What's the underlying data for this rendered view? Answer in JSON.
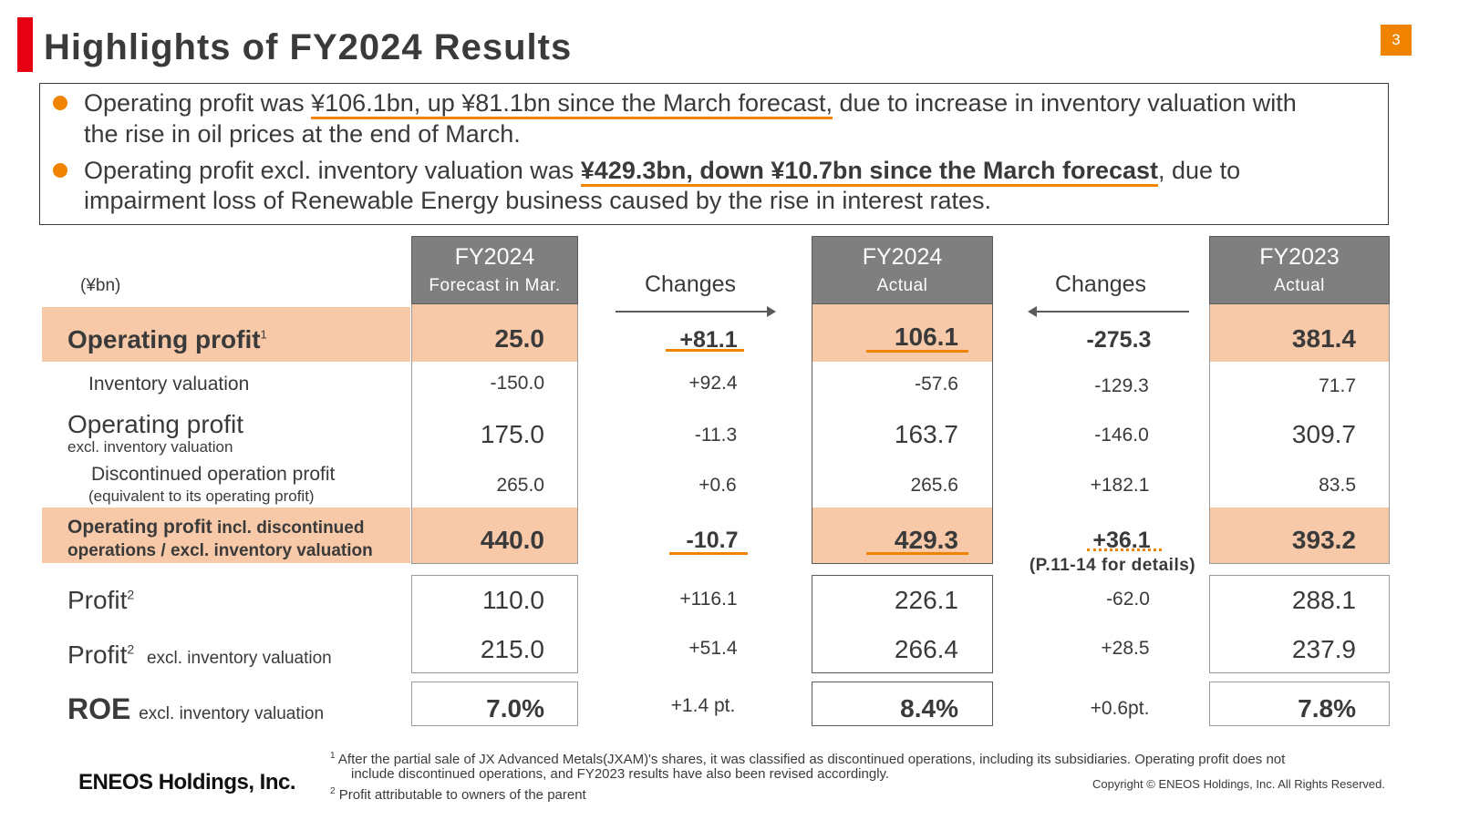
{
  "title": "Highlights of FY2024 Results",
  "page_number": "3",
  "summary": {
    "b1_pre": "Operating profit was ",
    "b1_ul": "¥106.1bn, up ¥81.1bn since the March forecast,",
    "b1_post": " due to increase in inventory valuation with",
    "b1_line2": "the rise in oil prices at the end of March.",
    "b2_pre": "Operating profit excl. inventory valuation was ",
    "b2_ul": "¥429.3bn, down ¥10.7bn since the March forecast",
    "b2_post": ", due to",
    "b2_line2": "impairment loss of Renewable Energy business caused by the rise in interest rates."
  },
  "table": {
    "unit": "(¥bn)",
    "headers": {
      "forecast_line1": "FY2024",
      "forecast_line2": "Forecast in Mar.",
      "changes1": "Changes",
      "actual_line1": "FY2024",
      "actual_line2": "Actual",
      "changes2": "Changes",
      "prev_line1": "FY2023",
      "prev_line2": "Actual"
    },
    "labels": {
      "op_profit": "Operating profit",
      "op_profit_sup": "1",
      "inventory": "Inventory valuation",
      "op_excl_main": "Operating profit",
      "op_excl_sub": "excl. inventory valuation",
      "discont_main": "Discontinued operation profit",
      "discont_sub": "(equivalent to its operating profit)",
      "op_incl_bold": "Operating profit",
      "op_incl_rest": " incl. discontinued",
      "op_incl_line2": "operations / excl. inventory valuation",
      "profit": "Profit",
      "profit_sup": "2",
      "profit_excl": "Profit",
      "profit_excl_sup": "2",
      "profit_excl_sub": "excl. inventory valuation",
      "roe": "ROE",
      "roe_sub": "excl. inventory valuation"
    },
    "rows": {
      "op_profit": {
        "forecast": "25.0",
        "chg1": "+81.1",
        "actual": "106.1",
        "chg2": "-275.3",
        "prev": "381.4"
      },
      "inventory": {
        "forecast": "-150.0",
        "chg1": "+92.4",
        "actual": "-57.6",
        "chg2": "-129.3",
        "prev": "71.7"
      },
      "op_excl": {
        "forecast": "175.0",
        "chg1": "-11.3",
        "actual": "163.7",
        "chg2": "-146.0",
        "prev": "309.7"
      },
      "discont": {
        "forecast": "265.0",
        "chg1": "+0.6",
        "actual": "265.6",
        "chg2": "+182.1",
        "prev": "83.5"
      },
      "op_incl": {
        "forecast": "440.0",
        "chg1": "-10.7",
        "actual": "429.3",
        "chg2": "+36.1",
        "prev": "393.2"
      },
      "profit": {
        "forecast": "110.0",
        "chg1": "+116.1",
        "actual": "226.1",
        "chg2": "-62.0",
        "prev": "288.1"
      },
      "profit_excl": {
        "forecast": "215.0",
        "chg1": "+51.4",
        "actual": "266.4",
        "chg2": "+28.5",
        "prev": "237.9"
      },
      "roe": {
        "forecast": "7.0%",
        "chg1": "+1.4 pt.",
        "actual": "8.4%",
        "chg2": "+0.6pt.",
        "prev": "7.8%"
      }
    },
    "details_note": "(P.11-14 for details)"
  },
  "footer": {
    "logo": "ENEOS Holdings, Inc.",
    "fn1_sup": "1",
    "fn1_line1": "After the partial sale of JX Advanced Metals(JXAM)'s shares, it was classified as discontinued operations, including its subsidiaries. Operating profit does not",
    "fn1_line2": "include discontinued operations, and FY2023 results have also been revised accordingly.",
    "fn2_sup": "2",
    "fn2": "Profit attributable to owners of the parent",
    "copyright": "Copyright © ENEOS Holdings, Inc. All Rights Reserved."
  },
  "colors": {
    "accent_red": "#e60012",
    "accent_orange": "#f08300",
    "highlight_fill": "#f7c9a9",
    "header_gray": "#7f7f7f"
  }
}
